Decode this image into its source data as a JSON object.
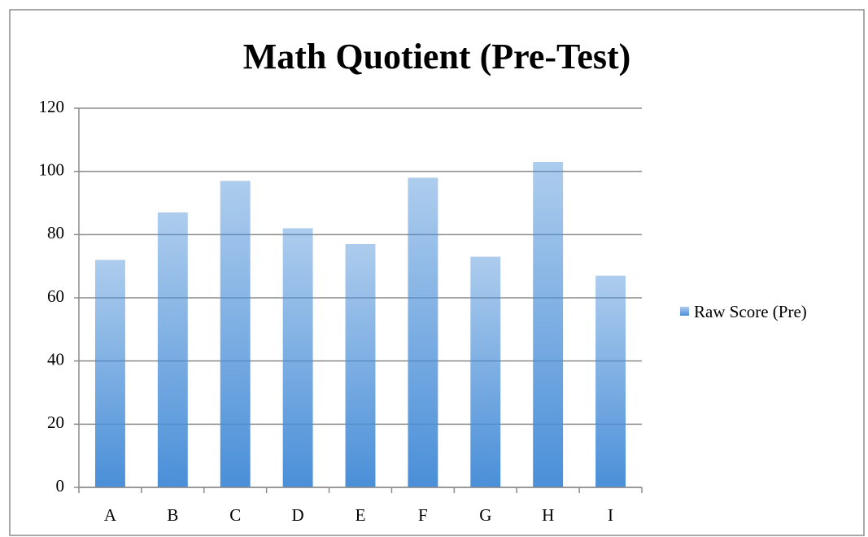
{
  "chart_data": {
    "type": "bar",
    "title": "Math Quotient (Pre-Test)",
    "categories": [
      "A",
      "B",
      "C",
      "D",
      "E",
      "F",
      "G",
      "H",
      "I"
    ],
    "series": [
      {
        "name": "Raw Score (Pre)",
        "color": "#4a8fd8",
        "values": [
          72,
          87,
          97,
          82,
          77,
          98,
          73,
          103,
          67
        ]
      }
    ],
    "ylim": [
      0,
      120
    ],
    "yticks": [
      0,
      20,
      40,
      60,
      80,
      100,
      120
    ],
    "grid": true,
    "legend": "right"
  }
}
